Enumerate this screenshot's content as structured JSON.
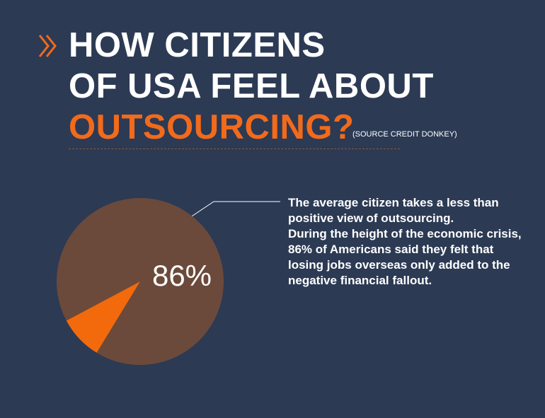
{
  "chart_data": {
    "type": "pie",
    "title_lines": [
      "HOW CITIZENS",
      "OF USA FEEL ABOUT",
      "OUTSOURCING?"
    ],
    "source": "(SOURCE CREDIT DONKEY)",
    "values": [
      86,
      8
    ],
    "value_labels": [
      "86%",
      null
    ],
    "colors": [
      "#6b4a3b",
      "#f26a0b"
    ],
    "annotation": [
      "The average citizen takes a less than positive view of outsourcing.",
      "During the height of the economic crisis, 86% of Americans said they felt that losing jobs overseas only added to the negative financial fallout."
    ]
  }
}
